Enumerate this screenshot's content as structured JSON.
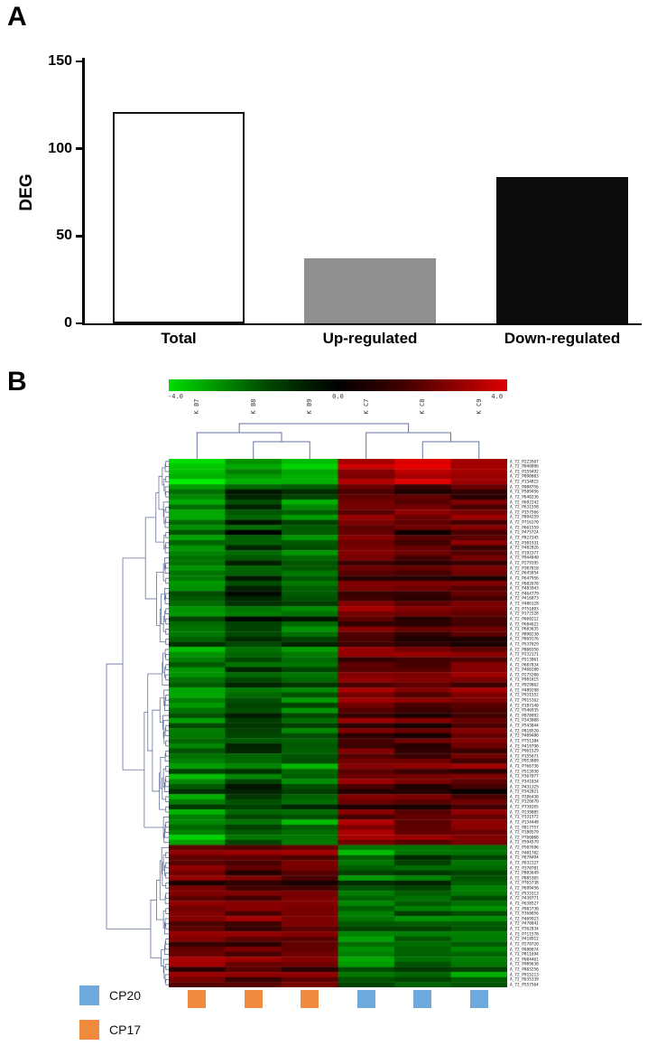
{
  "figure": {
    "panel_a_letter": "A",
    "panel_b_letter": "B"
  },
  "chart_data": [
    {
      "type": "bar",
      "panel": "A",
      "title": "",
      "xlabel": "",
      "ylabel": "DEG",
      "categories": [
        "Total",
        "Up-regulated",
        "Down-regulated"
      ],
      "values": [
        121,
        37,
        84
      ],
      "bar_colors": [
        "#ffffff",
        "#8f8f8f",
        "#0c0c0c"
      ],
      "bar_borders": [
        "#111111",
        "#8f8f8f",
        "#0c0c0c"
      ],
      "ylim": [
        0,
        150
      ],
      "yticks": [
        0,
        50,
        100,
        150
      ],
      "grid": false,
      "legend_position": "none"
    },
    {
      "type": "heatmap",
      "panel": "B",
      "title": "",
      "columns": [
        "K B7",
        "K B8",
        "K B9",
        "K C7",
        "K C8",
        "K C9"
      ],
      "column_groups": [
        "CP17",
        "CP17",
        "CP17",
        "CP20",
        "CP20",
        "CP20"
      ],
      "group_colors": {
        "CP17": "#f08a3c",
        "CP20": "#6fa8dc"
      },
      "colorbar": {
        "min": -4.0,
        "mid": 0.0,
        "max": 4.0,
        "tick_labels": [
          "-4.0",
          "0.0",
          "4.0"
        ],
        "min_color": "#00dd00",
        "mid_color": "#000000",
        "max_color": "#dd0000"
      },
      "row_count": 104,
      "row_label_prefix": "A_72_P",
      "row_labels_visible_sample": [
        "A_72_P223567",
        "A_72_P040096",
        "A_72_P259492",
        "A_72_P090003",
        "A_72_P134815",
        "A_72_P088756"
      ],
      "cluster_blocks": [
        {
          "rows": [
            0,
            5
          ],
          "col_means": [
            -3.3,
            -2.5,
            -3.0,
            2.8,
            3.3,
            2.6
          ],
          "jitter": 0.7
        },
        {
          "rows": [
            5,
            76
          ],
          "col_means": [
            -1.9,
            -1.1,
            -1.6,
            1.6,
            1.3,
            1.5
          ],
          "jitter": 1.1
        },
        {
          "rows": [
            76,
            104
          ],
          "col_means": [
            1.7,
            1.4,
            1.6,
            -1.7,
            -1.4,
            -1.6
          ],
          "jitter": 1.0
        }
      ],
      "top_dendrogram": [
        [
          0,
          [
            1,
            2
          ]
        ],
        [
          3,
          [
            4,
            5
          ]
        ]
      ],
      "dendrogram_color": "#64739e",
      "legend": [
        {
          "label": "CP20",
          "color": "#6fa8dc"
        },
        {
          "label": "CP17",
          "color": "#f08a3c"
        }
      ],
      "seed": 42
    }
  ]
}
